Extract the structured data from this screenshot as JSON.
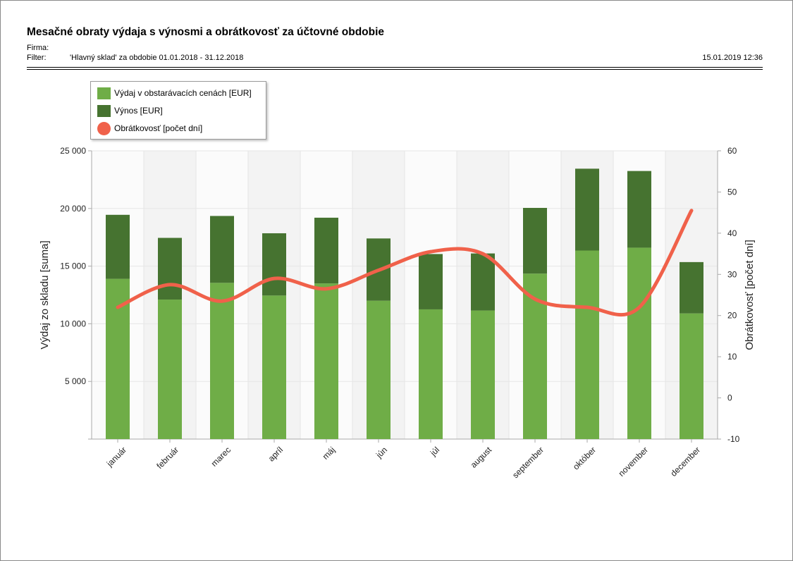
{
  "report": {
    "title": "Mesačné obraty výdaja s výnosmi a obrátkovosť za účtovné obdobie",
    "firma_label": "Firma:",
    "filter_label": "Filter:",
    "filter_value": "'Hlavný sklad' za obdobie 01.01.2018 - 31.12.2018",
    "timestamp": "15.01.2019 12:36"
  },
  "colors": {
    "vydaj": "#6fad47",
    "vynos": "#467330",
    "obratkovost": "#f0614a"
  },
  "chart_data": {
    "type": "bar",
    "stacked": true,
    "categories": [
      "január",
      "február",
      "marec",
      "apríl",
      "máj",
      "jún",
      "júl",
      "august",
      "september",
      "október",
      "november",
      "december"
    ],
    "series": [
      {
        "name": "Výdaj v obstarávacích cenách [EUR]",
        "axis": "left",
        "values": [
          13900,
          12100,
          13550,
          12450,
          13500,
          12000,
          11250,
          11150,
          14350,
          16350,
          16600,
          10900
        ]
      },
      {
        "name": "Výnos [EUR]",
        "axis": "left",
        "values": [
          5550,
          5350,
          5800,
          5400,
          5700,
          5400,
          4800,
          4950,
          5700,
          7100,
          6650,
          4450
        ]
      },
      {
        "name": "Obrátkovosť [počet dní]",
        "axis": "right",
        "type": "line",
        "values": [
          22,
          27.5,
          23.5,
          29,
          26.5,
          31,
          35.5,
          35,
          24,
          22,
          22,
          45.5
        ]
      }
    ],
    "ylabel": "Výdaj zo skladu [suma]",
    "y2label": "Obrátkovosť [počet dní]",
    "ylim": [
      0,
      25000
    ],
    "yticks": [
      5000,
      10000,
      15000,
      20000,
      25000
    ],
    "ytick_labels": [
      "5 000",
      "10 000",
      "15 000",
      "20 000",
      "25 000"
    ],
    "y2lim": [
      -10,
      60
    ],
    "y2ticks": [
      -10,
      0,
      10,
      20,
      30,
      40,
      50,
      60
    ],
    "grid": true,
    "legend_position": "top-left"
  }
}
